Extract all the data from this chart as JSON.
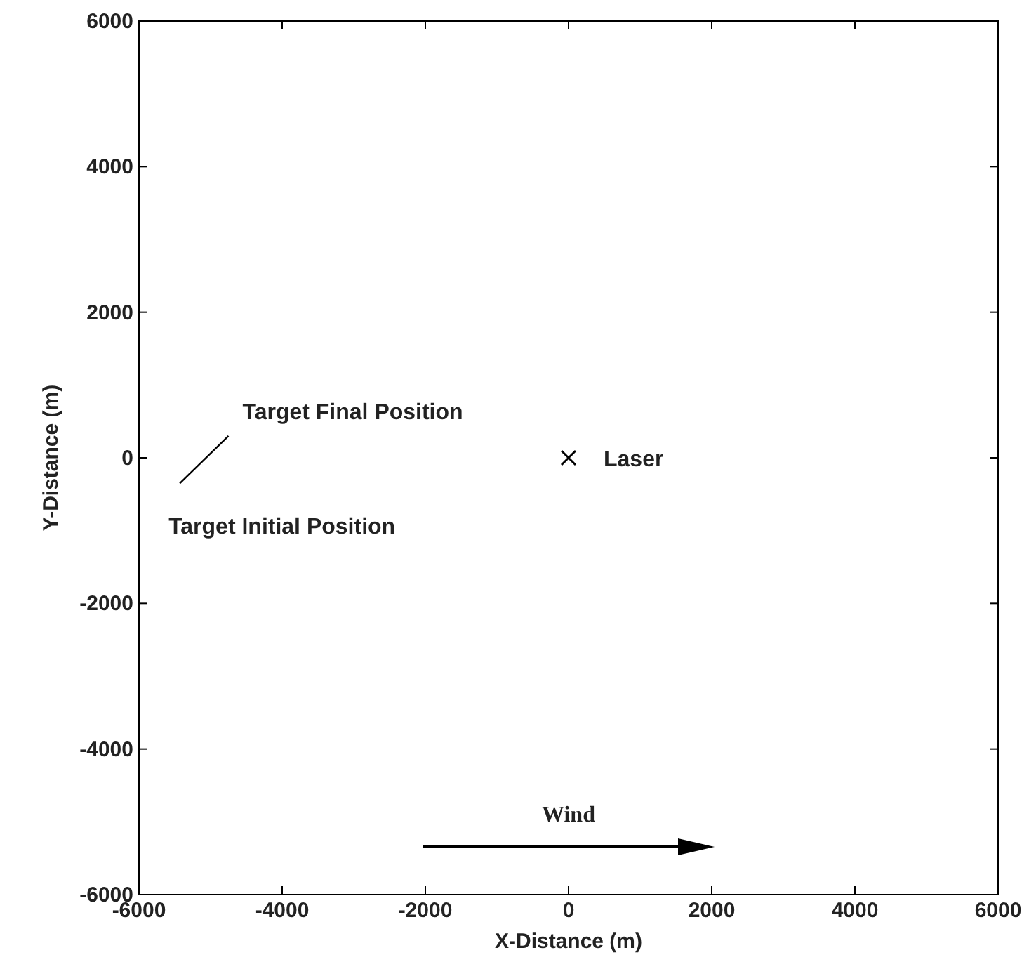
{
  "chart_data": {
    "type": "line",
    "xlabel": "X-Distance (m)",
    "ylabel": "Y-Distance (m)",
    "xlim": [
      -6000,
      6000
    ],
    "ylim": [
      -6000,
      6000
    ],
    "xticks": [
      -6000,
      -4000,
      -2000,
      0,
      2000,
      4000,
      6000
    ],
    "yticks": [
      -6000,
      -4000,
      -2000,
      0,
      2000,
      4000,
      6000
    ],
    "grid": false,
    "series": [
      {
        "color": "#000000",
        "marker": "none",
        "x": [
          -5430,
          -4750
        ],
        "values": [
          -350,
          300
        ]
      },
      {
        "type": "scatter",
        "color": "#000000",
        "marker": "cross",
        "x": [
          0
        ],
        "values": [
          0
        ]
      }
    ],
    "annotations": [
      {
        "text": "Target Final Position",
        "x": -4750,
        "y": 300
      },
      {
        "text": "Target Initial Position",
        "x": -5430,
        "y": -350
      },
      {
        "text": "Laser",
        "x": 0,
        "y": 0
      },
      "Wind"
    ]
  }
}
